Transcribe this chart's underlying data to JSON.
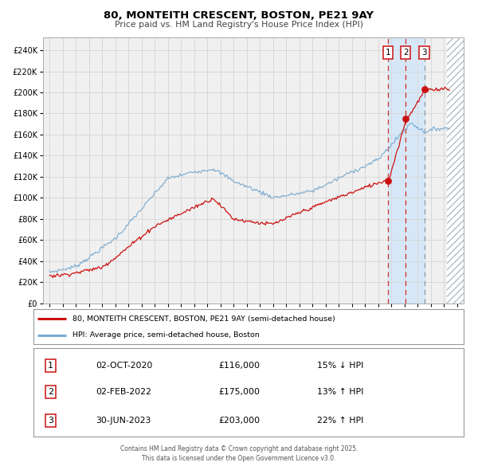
{
  "title": "80, MONTEITH CRESCENT, BOSTON, PE21 9AY",
  "subtitle": "Price paid vs. HM Land Registry's House Price Index (HPI)",
  "legend_line1": "80, MONTEITH CRESCENT, BOSTON, PE21 9AY (semi-detached house)",
  "legend_line2": "HPI: Average price, semi-detached house, Boston",
  "footer1": "Contains HM Land Registry data © Crown copyright and database right 2025.",
  "footer2": "This data is licensed under the Open Government Licence v3.0.",
  "transactions": [
    {
      "label": "1",
      "date": "02-OCT-2020",
      "price": "£116,000",
      "hpi_text": "15% ↓ HPI",
      "year": 2020.75,
      "value": 116000
    },
    {
      "label": "2",
      "date": "02-FEB-2022",
      "price": "£175,000",
      "hpi_text": "13% ↑ HPI",
      "year": 2022.083,
      "value": 175000
    },
    {
      "label": "3",
      "date": "30-JUN-2023",
      "price": "£203,000",
      "hpi_text": "22% ↑ HPI",
      "year": 2023.5,
      "value": 203000
    }
  ],
  "xlim": [
    1994.5,
    2026.5
  ],
  "ylim": [
    0,
    252000
  ],
  "ytick_vals": [
    0,
    20000,
    40000,
    60000,
    80000,
    100000,
    120000,
    140000,
    160000,
    180000,
    200000,
    220000,
    240000
  ],
  "xtick_vals": [
    1995,
    1996,
    1997,
    1998,
    1999,
    2000,
    2001,
    2002,
    2003,
    2004,
    2005,
    2006,
    2007,
    2008,
    2009,
    2010,
    2011,
    2012,
    2013,
    2014,
    2015,
    2016,
    2017,
    2018,
    2019,
    2020,
    2021,
    2022,
    2023,
    2024,
    2025,
    2026
  ],
  "hpi_color": "#7aaad0",
  "price_color": "#cc1111",
  "bg_color": "#f0f0f0",
  "grid_color": "#d8d8d8",
  "highlight_color": "#d6e8f8",
  "future_start": 2025.25
}
